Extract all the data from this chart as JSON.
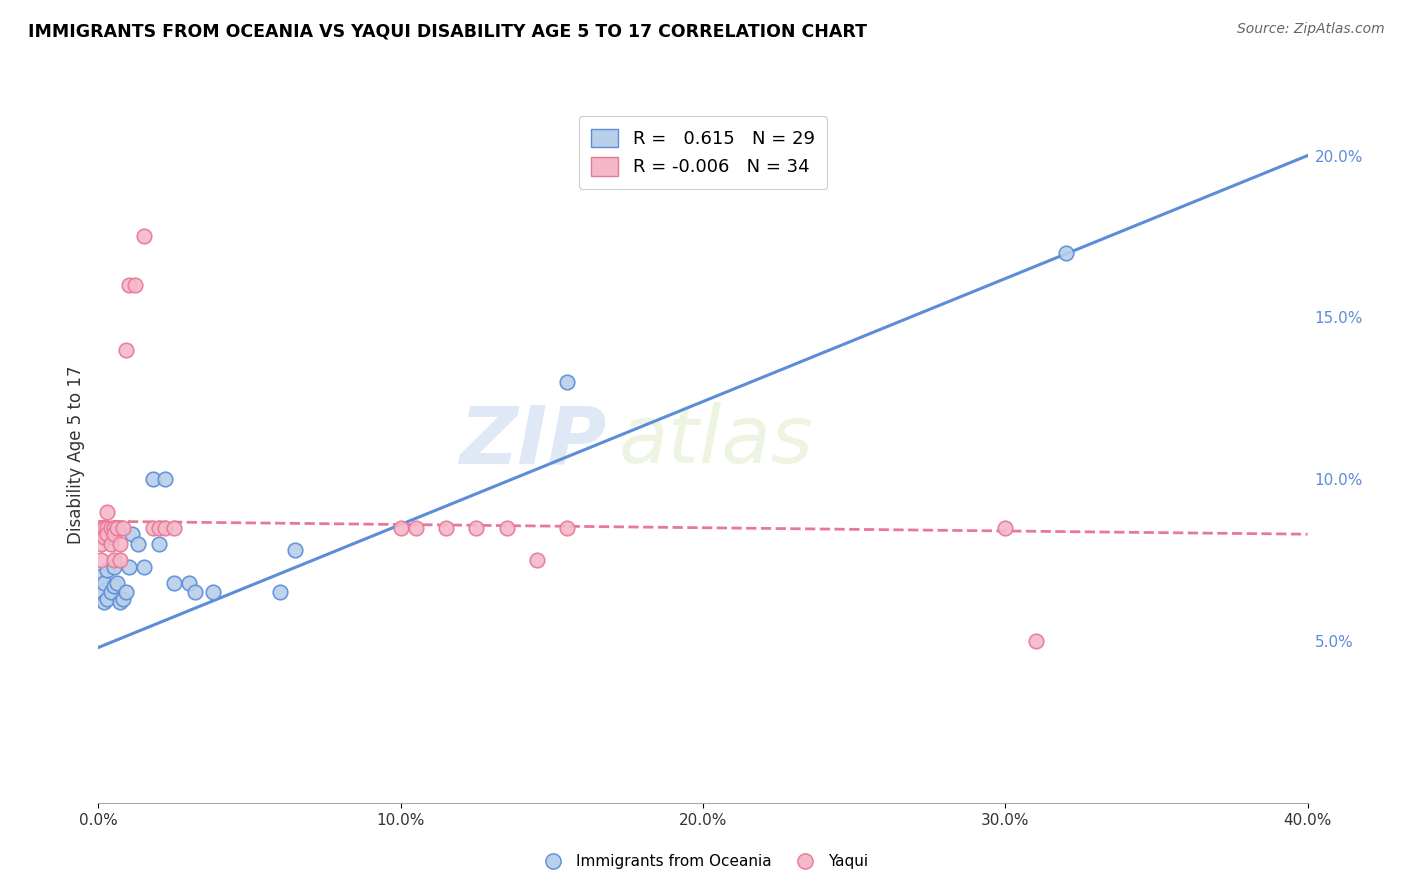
{
  "title": "IMMIGRANTS FROM OCEANIA VS YAQUI DISABILITY AGE 5 TO 17 CORRELATION CHART",
  "source": "Source: ZipAtlas.com",
  "ylabel": "Disability Age 5 to 17",
  "xlim": [
    0.0,
    0.4
  ],
  "ylim": [
    0.0,
    0.215
  ],
  "xticks": [
    0.0,
    0.1,
    0.2,
    0.3,
    0.4
  ],
  "xticklabels": [
    "0.0%",
    "10.0%",
    "20.0%",
    "30.0%",
    "40.0%"
  ],
  "yticks_right": [
    0.05,
    0.1,
    0.15,
    0.2
  ],
  "yticklabels_right": [
    "5.0%",
    "10.0%",
    "15.0%",
    "20.0%"
  ],
  "legend_blue_r": "0.615",
  "legend_blue_n": "29",
  "legend_pink_r": "-0.006",
  "legend_pink_n": "34",
  "color_blue": "#b8d0e8",
  "color_pink": "#f5b8c8",
  "line_blue": "#5b8dd9",
  "line_pink": "#e87898",
  "watermark_zip": "ZIP",
  "watermark_atlas": "atlas",
  "blue_x": [
    0.001,
    0.001,
    0.002,
    0.002,
    0.003,
    0.003,
    0.004,
    0.004,
    0.005,
    0.005,
    0.006,
    0.007,
    0.008,
    0.009,
    0.01,
    0.011,
    0.013,
    0.015,
    0.018,
    0.02,
    0.022,
    0.025,
    0.03,
    0.032,
    0.038,
    0.06,
    0.065,
    0.155,
    0.32
  ],
  "blue_y": [
    0.065,
    0.07,
    0.062,
    0.068,
    0.063,
    0.072,
    0.065,
    0.082,
    0.067,
    0.073,
    0.068,
    0.062,
    0.063,
    0.065,
    0.073,
    0.083,
    0.08,
    0.073,
    0.1,
    0.08,
    0.1,
    0.068,
    0.068,
    0.065,
    0.065,
    0.065,
    0.078,
    0.13,
    0.17
  ],
  "pink_x": [
    0.001,
    0.001,
    0.001,
    0.002,
    0.002,
    0.003,
    0.003,
    0.003,
    0.004,
    0.004,
    0.005,
    0.005,
    0.005,
    0.006,
    0.007,
    0.007,
    0.008,
    0.009,
    0.01,
    0.012,
    0.015,
    0.018,
    0.02,
    0.022,
    0.025,
    0.1,
    0.105,
    0.115,
    0.125,
    0.135,
    0.145,
    0.155,
    0.3,
    0.31
  ],
  "pink_y": [
    0.085,
    0.08,
    0.075,
    0.085,
    0.082,
    0.085,
    0.083,
    0.09,
    0.08,
    0.085,
    0.085,
    0.083,
    0.075,
    0.085,
    0.075,
    0.08,
    0.085,
    0.14,
    0.16,
    0.16,
    0.175,
    0.085,
    0.085,
    0.085,
    0.085,
    0.085,
    0.085,
    0.085,
    0.085,
    0.085,
    0.075,
    0.085,
    0.085,
    0.05
  ],
  "blue_line_x": [
    0.0,
    0.4
  ],
  "blue_line_y": [
    0.048,
    0.2
  ],
  "pink_line_x": [
    0.0,
    0.4
  ],
  "pink_line_y": [
    0.087,
    0.083
  ]
}
